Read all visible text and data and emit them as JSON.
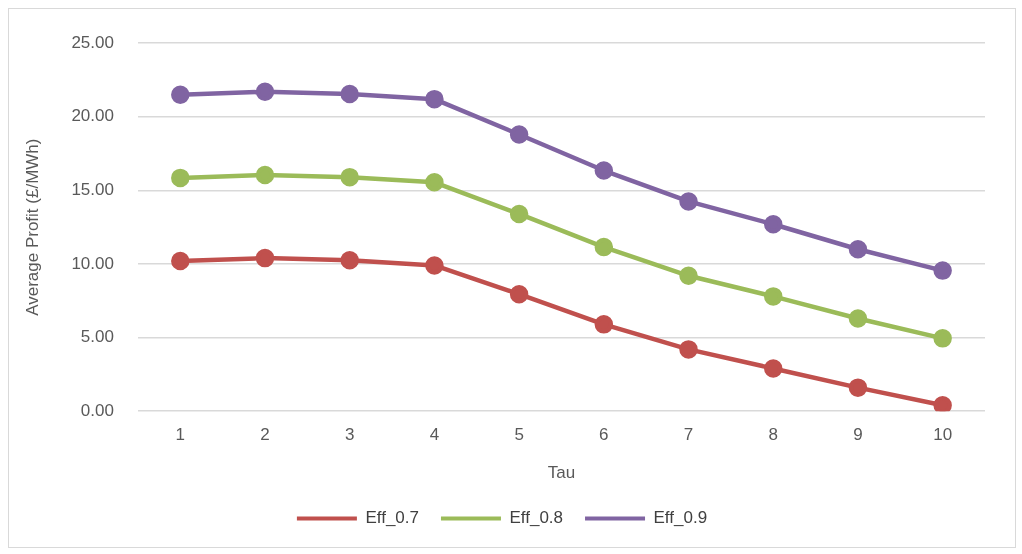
{
  "chart_data": {
    "type": "line",
    "xlabel": "Tau",
    "ylabel": "Average Profit (£/MWh)",
    "categories": [
      "1",
      "2",
      "3",
      "4",
      "5",
      "6",
      "7",
      "8",
      "9",
      "10"
    ],
    "series": [
      {
        "name": "Eff_0.7",
        "color": "#c0504d",
        "values": [
          10.2,
          10.4,
          10.25,
          9.9,
          7.95,
          5.9,
          4.2,
          2.9,
          1.6,
          0.4
        ]
      },
      {
        "name": "Eff_0.8",
        "color": "#9bbb59",
        "values": [
          15.85,
          16.05,
          15.9,
          15.55,
          13.4,
          11.15,
          9.2,
          7.8,
          6.3,
          4.95
        ]
      },
      {
        "name": "Eff_0.9",
        "color": "#8064a2",
        "values": [
          21.5,
          21.7,
          21.55,
          21.2,
          18.8,
          16.35,
          14.25,
          12.7,
          11.0,
          9.55
        ]
      }
    ],
    "ylim": [
      0,
      25
    ],
    "yticks": [
      {
        "value": 0,
        "label": "0.00"
      },
      {
        "value": 5,
        "label": "5.00"
      },
      {
        "value": 10,
        "label": "10.00"
      },
      {
        "value": 15,
        "label": "15.00"
      },
      {
        "value": 20,
        "label": "20.00"
      },
      {
        "value": 25,
        "label": "25.00"
      }
    ],
    "grid": "y",
    "legend": "bottom",
    "marker": "circle",
    "line_style": "solid"
  }
}
